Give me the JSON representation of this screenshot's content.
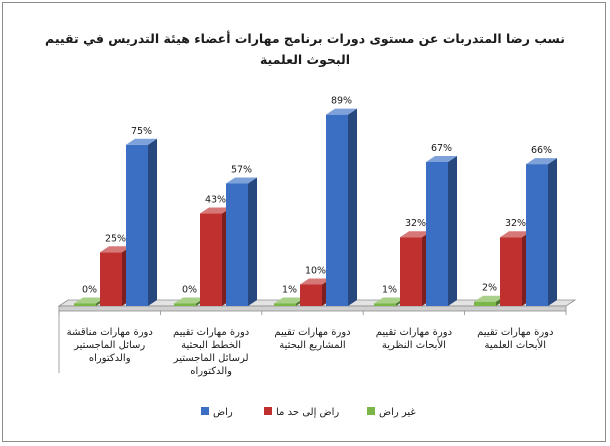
{
  "chart_data": {
    "type": "bar",
    "title": "نسب رضا المتدربات عن مستوى دورات برنامج مهارات أعضاء هيئة التدريس في تقييم البحوث العلمية",
    "title_lines": [
      "نسب رضا المتدربات عن مستوى دورات برنامج مهارات أعضاء هيئة التدريس في تقييم",
      "البحوث العلمية"
    ],
    "categories": [
      "دورة مهارات تقييم الأبحاث العلمية",
      "دورة مهارات تقييم الأبحاث النظرية",
      "دورة مهارات تقييم المشاريع البحثية",
      "دورة مهارات تقييم الخطط البحثية لرسائل الماجستير والدكتوراه",
      "دورة مهارات مناقشة رسائل الماجستير والدكتوراه"
    ],
    "category_lines": [
      [
        "دورة مهارات تقييم",
        "الأبحاث العلمية"
      ],
      [
        "دورة مهارات تقييم",
        "الأبحاث النظرية"
      ],
      [
        "دورة مهارات تقييم",
        "المشاريع البحثية"
      ],
      [
        "دورة مهارات تقييم",
        "الخطط البحثية",
        "لرسائل الماجستير",
        "والدكتوراه"
      ],
      [
        "دورة مهارات مناقشة",
        "رسائل الماجستير",
        "والدكتوراه"
      ]
    ],
    "series": [
      {
        "name": "غير راض",
        "values": [
          2,
          1,
          1,
          0,
          0
        ],
        "labels": [
          "2%",
          "1%",
          "1%",
          "0%",
          "0%"
        ],
        "color": "#7ab648"
      },
      {
        "name": "راض إلى حد ما",
        "values": [
          32,
          32,
          10,
          43,
          25
        ],
        "labels": [
          "32%",
          "32%",
          "10%",
          "43%",
          "25%"
        ],
        "color": "#c0302f"
      },
      {
        "name": "راض",
        "values": [
          66,
          67,
          89,
          57,
          75
        ],
        "labels": [
          "66%",
          "67%",
          "89%",
          "57%",
          "75%"
        ],
        "color": "#3a6fc4"
      }
    ],
    "ylim": [
      0,
      100
    ],
    "grid": false,
    "legend_position": "bottom"
  }
}
